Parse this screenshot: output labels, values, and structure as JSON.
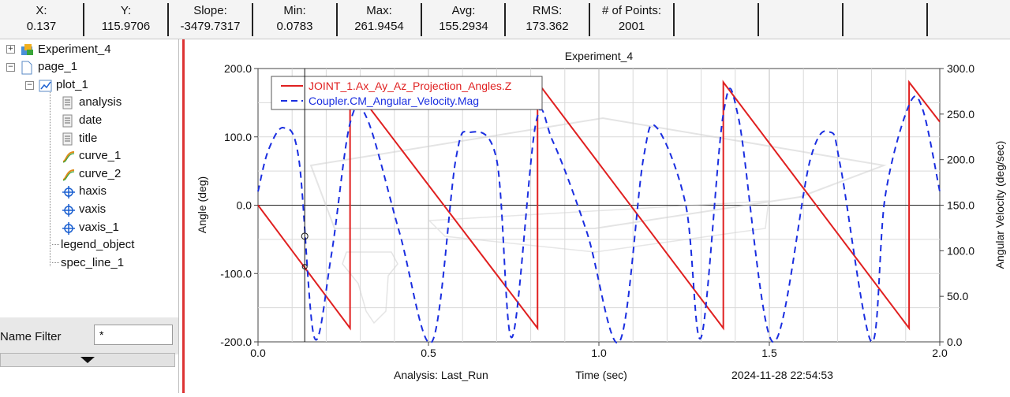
{
  "statusbar": {
    "cells": [
      {
        "label": "X:",
        "value": "0.137"
      },
      {
        "label": "Y:",
        "value": "115.9706"
      },
      {
        "label": "Slope:",
        "value": "-3479.7317"
      },
      {
        "label": "Min:",
        "value": "0.0783"
      },
      {
        "label": "Max:",
        "value": "261.9454"
      },
      {
        "label": "Avg:",
        "value": "155.2934"
      },
      {
        "label": "RMS:",
        "value": "173.362"
      },
      {
        "label": "# of Points:",
        "value": "2001"
      }
    ]
  },
  "tree": {
    "items": [
      {
        "label": "Experiment_4",
        "icon": "experiment-icon"
      },
      {
        "label": "page_1",
        "icon": "page-icon"
      },
      {
        "label": "plot_1",
        "icon": "plot-icon"
      },
      {
        "label": "analysis",
        "icon": "text-doc-icon"
      },
      {
        "label": "date",
        "icon": "text-doc-icon"
      },
      {
        "label": "title",
        "icon": "text-doc-icon"
      },
      {
        "label": "curve_1",
        "icon": "curve-icon"
      },
      {
        "label": "curve_2",
        "icon": "curve-icon"
      },
      {
        "label": "haxis",
        "icon": "axis-icon"
      },
      {
        "label": "vaxis",
        "icon": "axis-icon"
      },
      {
        "label": "vaxis_1",
        "icon": "axis-icon"
      },
      {
        "label": "legend_object",
        "icon": ""
      },
      {
        "label": "spec_line_1",
        "icon": ""
      }
    ]
  },
  "filter": {
    "label": "Name Filter",
    "value": "*"
  },
  "footer": {
    "analysis": "Analysis:  Last_Run",
    "date": "2024-11-28 22:54:53"
  },
  "colors": {
    "curve1": "#e02020",
    "curve2": "#1a2ee0"
  },
  "chart_data": {
    "type": "line",
    "title": "Experiment_4",
    "xlabel": "Time (sec)",
    "ylabel": "Angle (deg)",
    "y2label": "Angular Velocity (deg/sec)",
    "xlim": [
      0.0,
      2.0
    ],
    "ylim": [
      -200.0,
      200.0
    ],
    "y2lim": [
      0.0,
      300.0
    ],
    "xticks": [
      "0.0",
      "0.5",
      "1.0",
      "1.5",
      "2.0"
    ],
    "yticks": [
      "200.0",
      "100.0",
      "0.0",
      "-100.0",
      "-200.0"
    ],
    "y2ticks": [
      "300.0",
      "250.0",
      "200.0",
      "150.0",
      "100.0",
      "50.0",
      "0.0"
    ],
    "grid": true,
    "legend_position": "top-left",
    "cursor_x": 0.137,
    "series": [
      {
        "name": "JOINT_1.Ax_Ay_Az_Projection_Angles.Z",
        "axis": "left",
        "style": "solid",
        "x": [
          0.0,
          0.27,
          0.27,
          0.82,
          0.82,
          1.365,
          1.365,
          1.91,
          1.91,
          2.0
        ],
        "y": [
          0.0,
          -180.0,
          180.0,
          -180.0,
          180.0,
          -180.0,
          180.0,
          -180.0,
          180.0,
          122.0
        ]
      },
      {
        "name": "Coupler.CM_Angular_Velocity.Mag",
        "axis": "right",
        "style": "dashed",
        "x": [
          0.0,
          0.03,
          0.075,
          0.12,
          0.165,
          0.215,
          0.27,
          0.32,
          0.415,
          0.51,
          0.58,
          0.62,
          0.7,
          0.745,
          0.815,
          0.865,
          0.965,
          1.06,
          1.13,
          1.17,
          1.255,
          1.3,
          1.365,
          1.41,
          1.51,
          1.62,
          1.68,
          1.71,
          1.8,
          1.84,
          1.91,
          1.95,
          2.0
        ],
        "y": [
          165,
          210,
          235,
          200,
          5,
          95,
          240,
          245,
          120,
          0,
          200,
          230,
          200,
          5,
          240,
          220,
          120,
          0,
          200,
          235,
          150,
          5,
          250,
          245,
          0,
          200,
          230,
          190,
          0,
          160,
          260,
          255,
          165
        ]
      }
    ]
  }
}
